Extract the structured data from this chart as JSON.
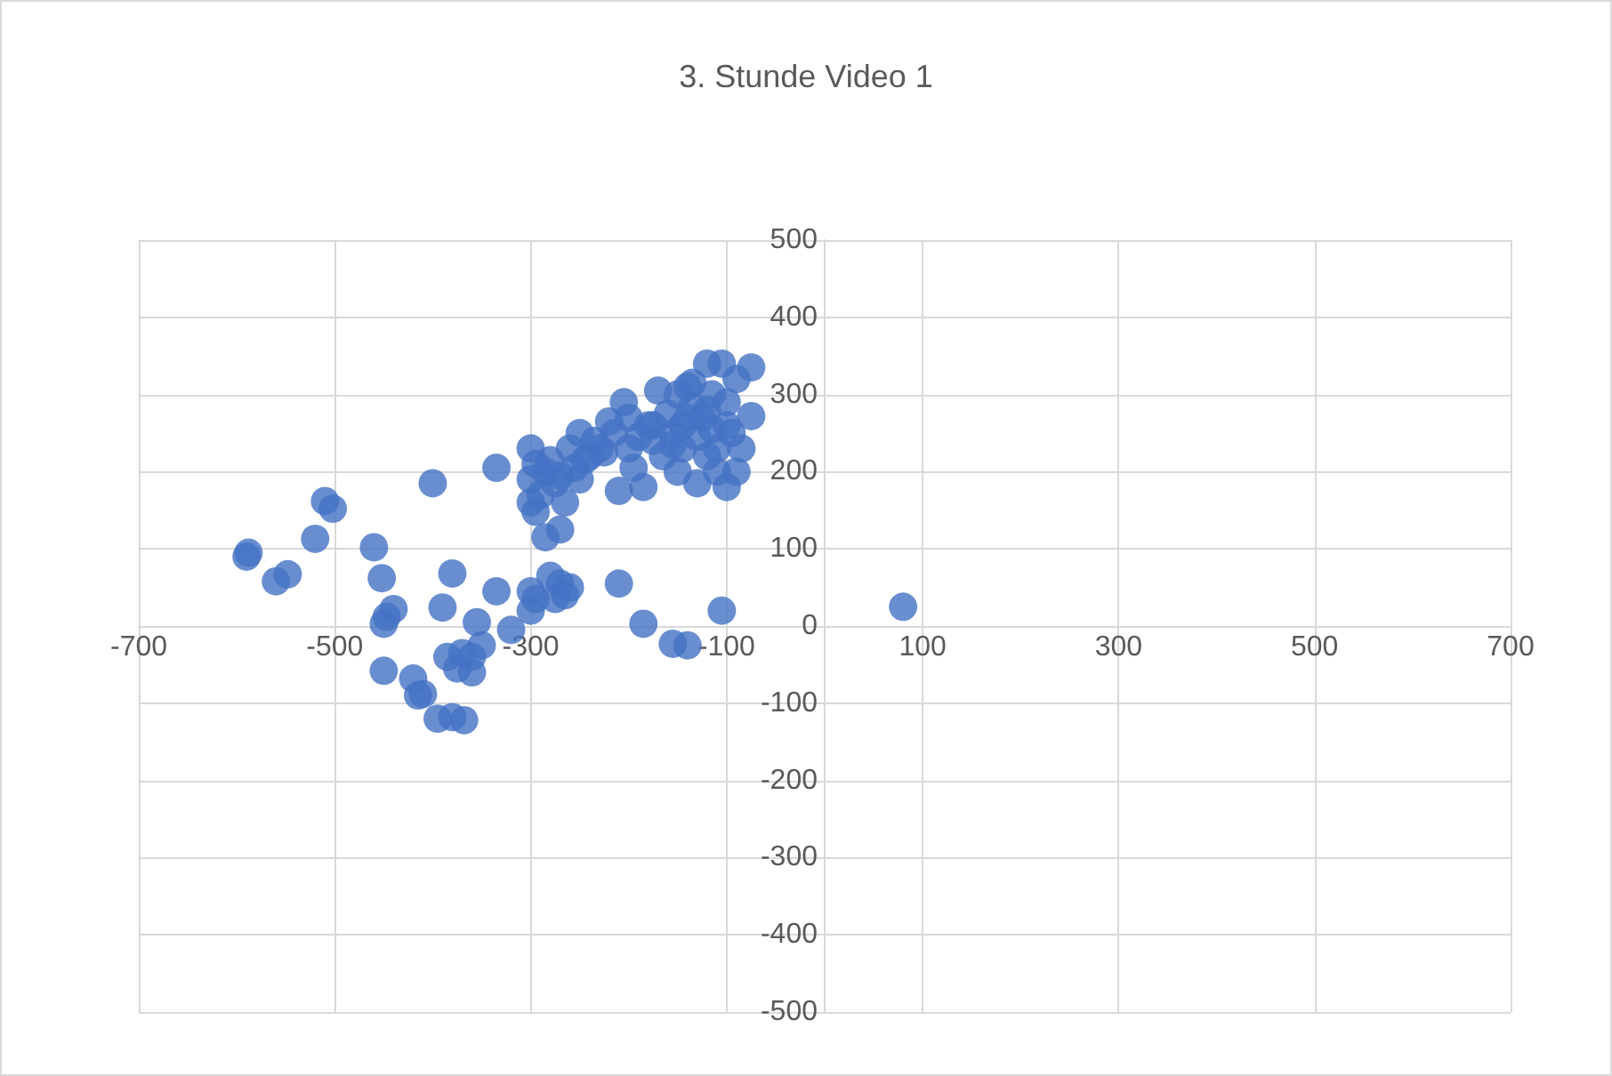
{
  "chart_data": {
    "type": "scatter",
    "title": "3. Stunde Video 1",
    "x": [
      -590,
      -588,
      -560,
      -548,
      -520,
      -510,
      -502,
      -460,
      -452,
      -450,
      -447,
      -440,
      -450,
      -420,
      -415,
      -410,
      -395,
      -380,
      -368,
      -400,
      -390,
      -380,
      -385,
      -375,
      -370,
      -360,
      -355,
      -350,
      -360,
      -335,
      -335,
      -320,
      -300,
      -300,
      -295,
      -285,
      -280,
      -275,
      -270,
      -265,
      -260,
      -270,
      -300,
      -300,
      -295,
      -300,
      -295,
      -290,
      -285,
      -280,
      -275,
      -270,
      -265,
      -260,
      -255,
      -250,
      -245,
      -240,
      -235,
      -225,
      -220,
      -215,
      -210,
      -205,
      -200,
      -195,
      -190,
      -185,
      -180,
      -175,
      -170,
      -165,
      -160,
      -155,
      -150,
      -145,
      -140,
      -135,
      -130,
      -125,
      -120,
      -115,
      -110,
      -105,
      -100,
      -100,
      -95,
      -90,
      -85,
      -75,
      -75,
      -210,
      -185,
      -155,
      -140,
      -105,
      80,
      -110,
      -120,
      -130,
      -150,
      -175,
      -200,
      -230,
      -250,
      -145,
      -120,
      -100,
      -90,
      -115,
      -135,
      -140,
      -155
    ],
    "values": [
      90,
      95,
      58,
      67,
      113,
      162,
      152,
      102,
      62,
      3,
      12,
      22,
      -58,
      -68,
      -90,
      -88,
      -120,
      -118,
      -122,
      185,
      24,
      68,
      -40,
      -55,
      -35,
      -60,
      5,
      -25,
      -40,
      45,
      205,
      -5,
      45,
      20,
      35,
      115,
      65,
      35,
      55,
      40,
      50,
      125,
      230,
      190,
      210,
      160,
      148,
      170,
      200,
      215,
      185,
      195,
      160,
      230,
      205,
      190,
      215,
      220,
      240,
      225,
      265,
      250,
      175,
      290,
      230,
      205,
      245,
      180,
      260,
      240,
      305,
      220,
      275,
      250,
      300,
      260,
      310,
      285,
      185,
      270,
      340,
      300,
      230,
      340,
      180,
      260,
      250,
      200,
      230,
      335,
      272,
      55,
      3,
      -23,
      -25,
      20,
      25,
      200,
      220,
      245,
      200,
      260,
      270,
      230,
      250,
      230,
      280,
      290,
      320,
      255,
      315,
      270,
      235
    ],
    "color": "#4472c4",
    "marker": "circle",
    "xlim": [
      -700,
      700
    ],
    "xticks": [
      -700,
      -500,
      -300,
      -100,
      100,
      300,
      500,
      700
    ],
    "ylim": [
      -500,
      500
    ],
    "yticks": [
      -500,
      -400,
      -300,
      -200,
      -100,
      0,
      100,
      200,
      300,
      400,
      500
    ],
    "grid": true
  }
}
